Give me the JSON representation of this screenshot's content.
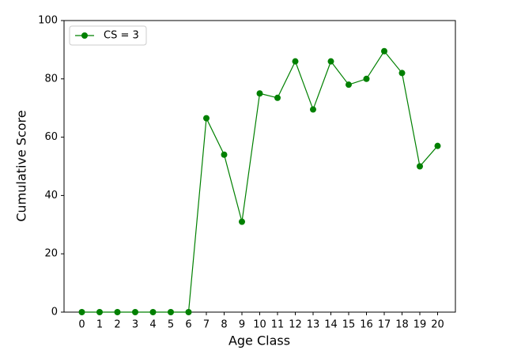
{
  "chart_data": {
    "type": "line",
    "xlabel": "Age Class",
    "ylabel": "Cumulative Score",
    "x": [
      0,
      1,
      2,
      3,
      4,
      5,
      6,
      7,
      8,
      9,
      10,
      11,
      12,
      13,
      14,
      15,
      16,
      17,
      18,
      19,
      20
    ],
    "series": [
      {
        "name": "CS = 3",
        "color": "#008000",
        "values": [
          0,
          0,
          0,
          0,
          0,
          0,
          0,
          66.5,
          54,
          31,
          75,
          73.5,
          86,
          69.5,
          86,
          78,
          80,
          89.5,
          82,
          50,
          57
        ]
      }
    ],
    "xlim": [
      -1,
      21
    ],
    "xticks": [
      0,
      1,
      2,
      3,
      4,
      5,
      6,
      7,
      8,
      9,
      10,
      11,
      12,
      13,
      14,
      15,
      16,
      17,
      18,
      19,
      20
    ],
    "ylim": [
      0,
      100
    ],
    "yticks": [
      0,
      20,
      40,
      60,
      80,
      100
    ],
    "legend": "upper left",
    "grid": false
  }
}
